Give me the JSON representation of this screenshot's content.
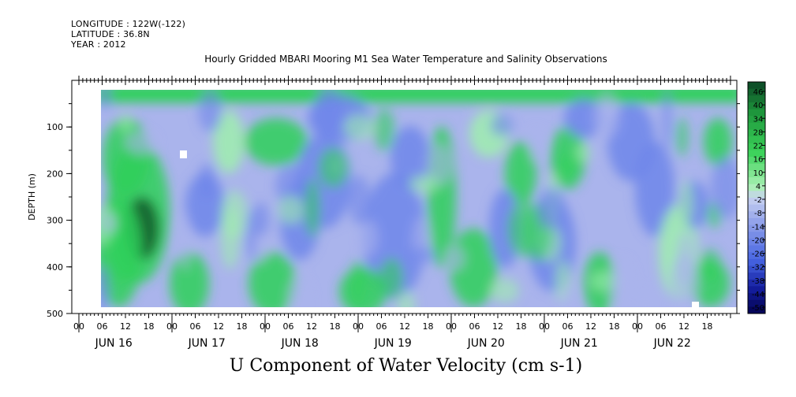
{
  "header": {
    "longitude": "LONGITUDE : 122W(-122)",
    "latitude": "LATITUDE : 36.8N",
    "year": "YEAR : 2012",
    "title": "Hourly Gridded MBARI Mooring M1 Sea Water Temperature and Salinity Observations"
  },
  "bottom_label": "U Component of Water Velocity (cm s-1)",
  "colors": {
    "green_dark": "#0e5a2a",
    "green": "#2fd05a",
    "green_light": "#9fefae",
    "blue_light": "#aab4ec",
    "blue": "#6e86ea",
    "blue_dark": "#0a0a70"
  },
  "chart_data": {
    "type": "heatmap",
    "title": "Hourly Gridded MBARI Mooring M1 Sea Water Temperature and Salinity Observations",
    "xlabel": "",
    "ylabel": "DEPTH (m)",
    "ylim": [
      500,
      0
    ],
    "y_ticks": [
      100,
      200,
      300,
      400,
      500
    ],
    "x_hour_labels": [
      "00",
      "06",
      "12",
      "18",
      "00",
      "06",
      "12",
      "18",
      "00",
      "06",
      "12",
      "18",
      "00",
      "06",
      "12",
      "18",
      "00",
      "06",
      "12",
      "18",
      "00",
      "06",
      "12",
      "18",
      "00",
      "06",
      "12",
      "18"
    ],
    "x_date_labels": [
      "JUN 16",
      "JUN 17",
      "JUN 18",
      "JUN 19",
      "JUN 20",
      "JUN 21",
      "JUN 22"
    ],
    "colorbar": {
      "labels": [
        "46",
        "40",
        "34",
        "28",
        "22",
        "16",
        "10",
        "4",
        "-2",
        "-8",
        "-14",
        "-20",
        "-26",
        "-32",
        "-38",
        "-44",
        "-50"
      ],
      "range": [
        -50,
        50
      ]
    }
  }
}
